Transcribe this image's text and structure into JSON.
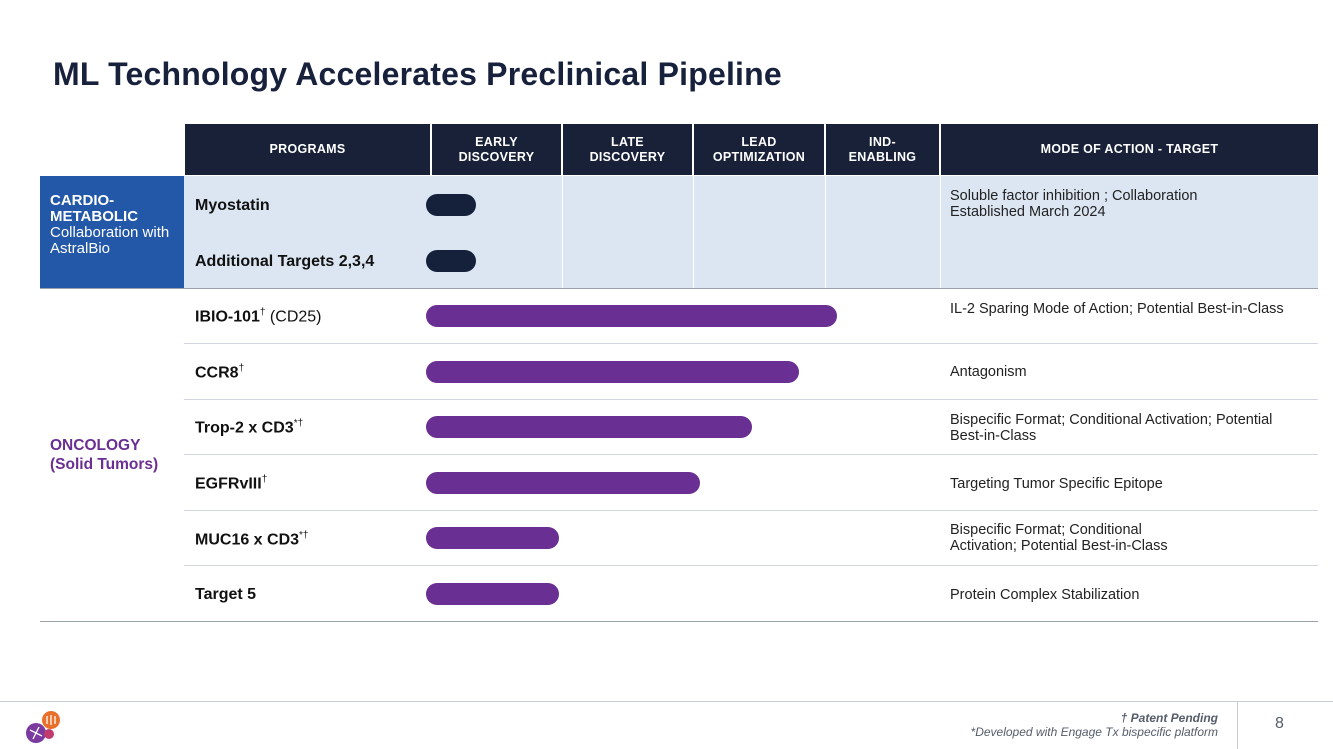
{
  "title": "ML Technology Accelerates Preclinical Pipeline",
  "headers": {
    "programs": "PROGRAMS",
    "early_discovery": "EARLY DISCOVERY",
    "late_discovery": "LATE DISCOVERY",
    "lead_optimization": "LEAD OPTIMIZATION",
    "ind_enabling": "IND-ENABLING",
    "mode": "MODE OF ACTION - TARGET"
  },
  "cardio": {
    "title": "CARDIO-METABOLIC",
    "subtitle": "Collaboration with AstralBio",
    "rows": [
      {
        "program": "Myostatin",
        "mode": "Soluble factor inhibition ; Collaboration Established March 2024",
        "progress_stage": 0.35
      },
      {
        "program": "Additional Targets 2,3,4",
        "mode": "",
        "progress_stage": 0.2
      }
    ]
  },
  "oncology": {
    "title": "ONCOLOGY",
    "subtitle": "(Solid Tumors)",
    "rows": [
      {
        "program": "IBIO-101",
        "mark": "†",
        "suffix": " (CD25)",
        "mode": "IL-2 Sparing Mode of Action; Potential Best-in-Class",
        "progress_stage": 3.1
      },
      {
        "program": "CCR8",
        "mark": "†",
        "suffix": "",
        "mode": "Antagonism",
        "progress_stage": 2.8
      },
      {
        "program": "Trop-2 x CD3",
        "mark": "*†",
        "suffix": "",
        "mode": "Bispecific Format; Conditional Activation; Potential Best-in-Class",
        "progress_stage": 2.45
      },
      {
        "program": "EGFRvIII",
        "mark": "†",
        "suffix": "",
        "mode": "Targeting Tumor Specific Epitope",
        "progress_stage": 2.05
      },
      {
        "program": "MUC16 x CD3",
        "mark": "*†",
        "suffix": "",
        "mode": "Bispecific Format; Conditional Activation; Potential Best-in-Class",
        "progress_stage": 0.98
      },
      {
        "program": "Target 5",
        "mark": "",
        "suffix": "",
        "mode": "Protein Complex Stabilization",
        "progress_stage": 0.98
      }
    ]
  },
  "footer": {
    "patent": "† Patent Pending",
    "note": "*Developed with Engage Tx bispecific platform",
    "page": "8"
  },
  "colors": {
    "navy": "#182138",
    "cardio_blue": "#2358a8",
    "cardio_bg": "#dce6f3",
    "oncology_purple": "#6a2f92",
    "bar_navy": "#15213a"
  }
}
